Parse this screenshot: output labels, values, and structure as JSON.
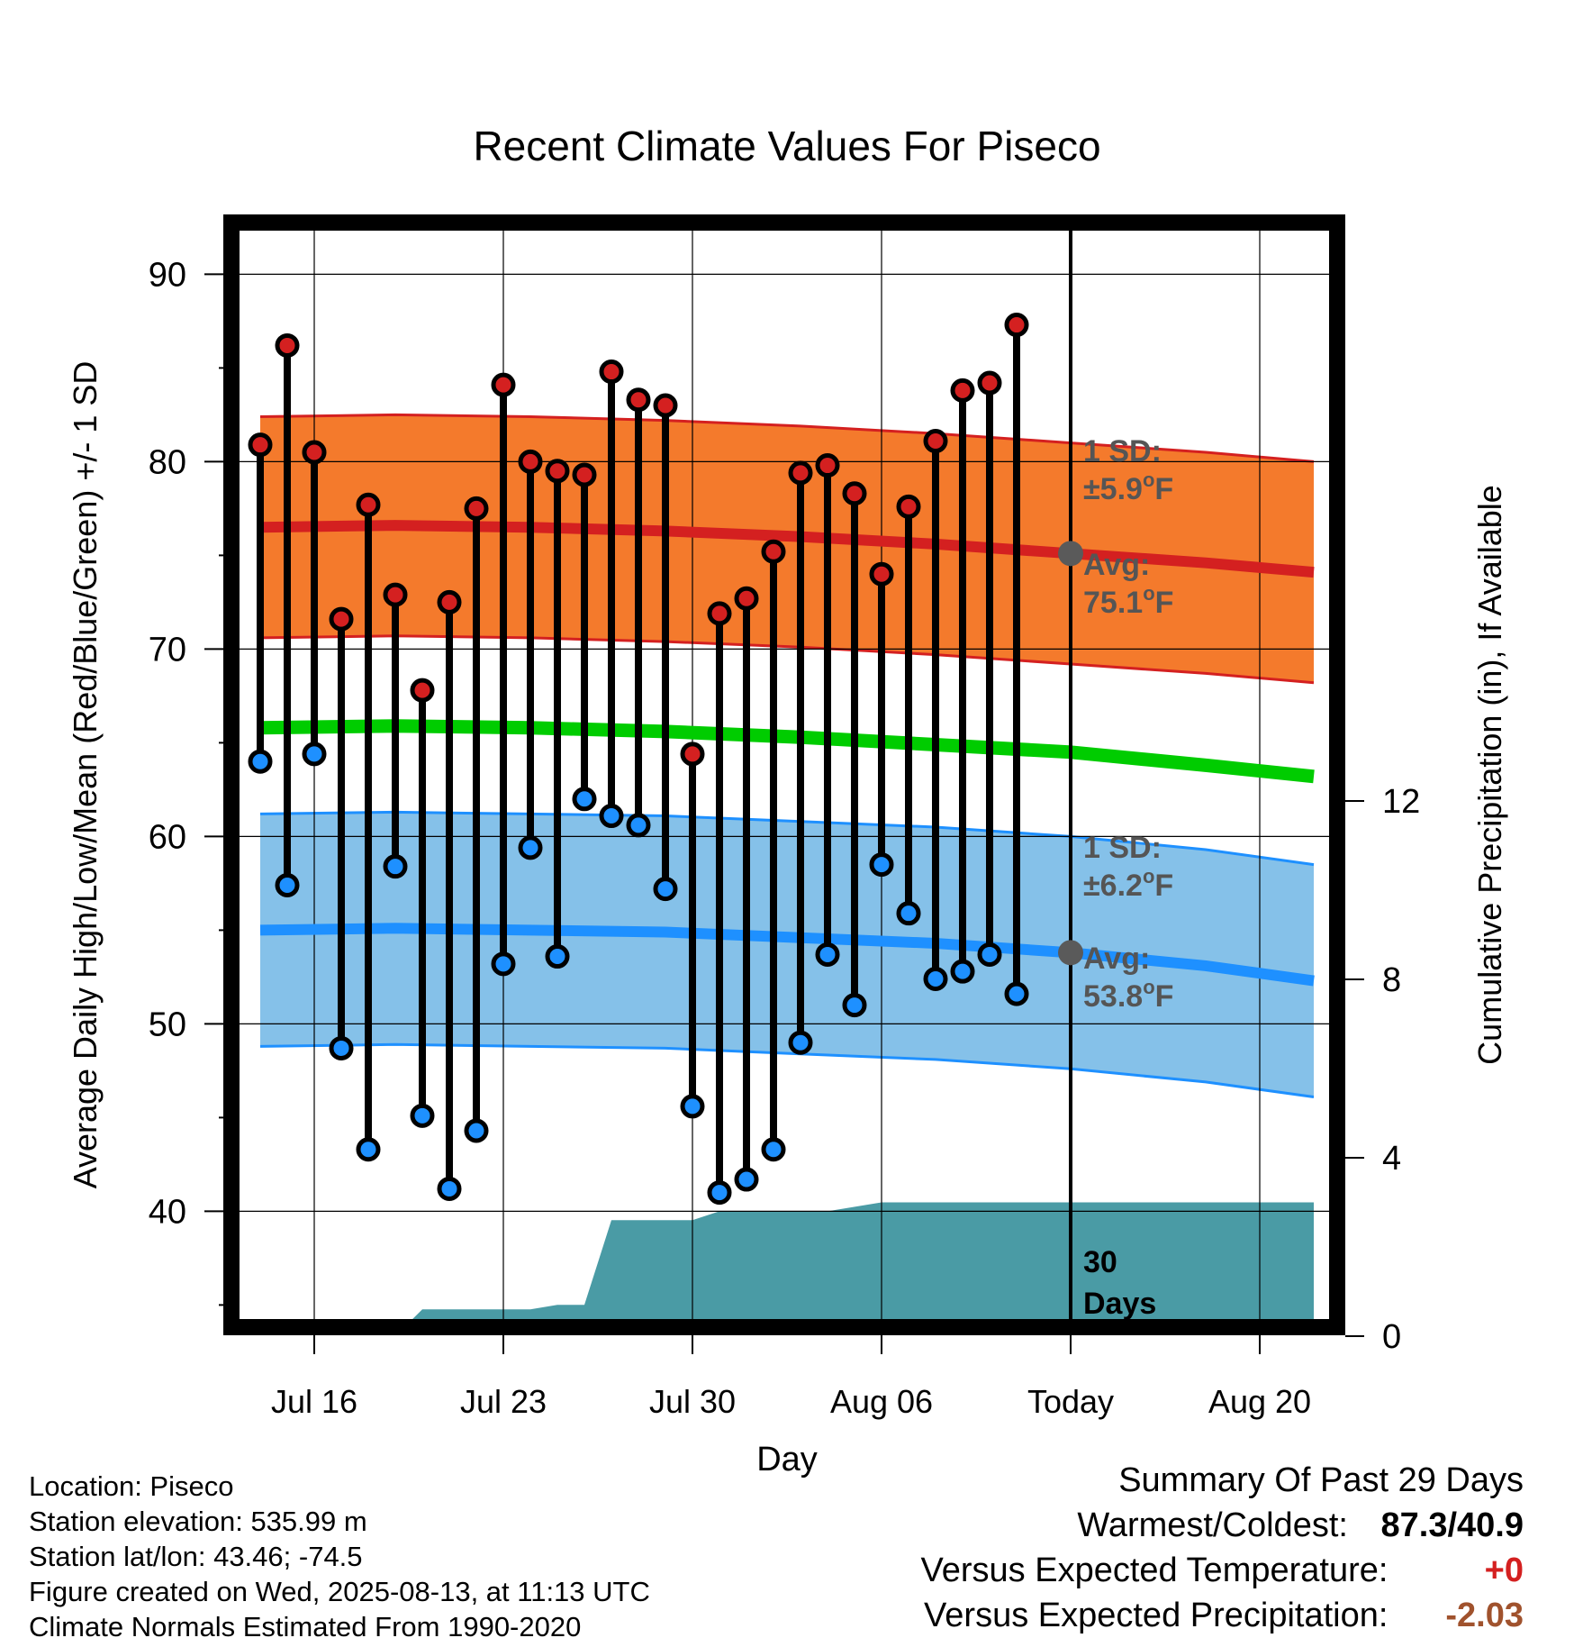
{
  "chart_data": {
    "type": "line",
    "title": "Recent Climate Values For Piseco",
    "xlabel": "Day",
    "ylabel": "Average Daily High/Low/Mean (Red/Blue/Green) +/- 1 SD",
    "y2label": "Cumulative Precipitation (in), If Available",
    "ylim": [
      33.5,
      92.5
    ],
    "y_ticks": [
      40,
      50,
      60,
      70,
      80,
      90
    ],
    "y2lim": [
      0,
      28
    ],
    "y2_ticks": [
      0,
      4,
      8,
      12
    ],
    "x_ticks": [
      "Jul 16",
      "Jul 23",
      "Jul 30",
      "Aug 06",
      "Today",
      "Aug 20"
    ],
    "x_start": "Jul 14",
    "x_end": "Aug 22",
    "today": "Aug 13",
    "days": [
      "Jul 14",
      "Jul 15",
      "Jul 16",
      "Jul 17",
      "Jul 18",
      "Jul 19",
      "Jul 20",
      "Jul 21",
      "Jul 22",
      "Jul 23",
      "Jul 24",
      "Jul 25",
      "Jul 26",
      "Jul 27",
      "Jul 28",
      "Jul 29",
      "Jul 30",
      "Jul 31",
      "Aug 01",
      "Aug 02",
      "Aug 03",
      "Aug 04",
      "Aug 05",
      "Aug 06",
      "Aug 07",
      "Aug 08",
      "Aug 09",
      "Aug 10",
      "Aug 11",
      "Aug 12"
    ],
    "series": [
      {
        "name": "Observed High",
        "color": "#d42020",
        "values": [
          80.9,
          86.2,
          80.5,
          71.6,
          77.7,
          72.9,
          67.8,
          72.5,
          77.5,
          84.1,
          80.0,
          79.5,
          79.3,
          84.8,
          83.3,
          83.0,
          64.4,
          71.9,
          72.7,
          75.2,
          79.4,
          79.8,
          78.3,
          74.0,
          77.6,
          81.1,
          83.8,
          84.2,
          87.3,
          null
        ]
      },
      {
        "name": "Observed Low",
        "color": "#1e90ff",
        "values": [
          64.0,
          57.4,
          64.4,
          48.7,
          43.3,
          58.4,
          45.1,
          41.2,
          44.3,
          53.2,
          59.4,
          53.6,
          62.0,
          61.1,
          60.6,
          57.2,
          45.6,
          41.0,
          41.7,
          43.3,
          49.0,
          53.7,
          51.0,
          58.5,
          55.9,
          52.4,
          52.8,
          53.7,
          51.6,
          null
        ]
      }
    ],
    "normal_high": {
      "x": [
        "Jul 14",
        "Jul 19",
        "Jul 24",
        "Jul 29",
        "Aug 03",
        "Aug 08",
        "Aug 13",
        "Aug 18",
        "Aug 22"
      ],
      "values": [
        76.5,
        76.6,
        76.5,
        76.3,
        76.0,
        75.6,
        75.1,
        74.6,
        74.1
      ],
      "sd": 5.9,
      "color": "#d42020",
      "band_color": "#f47a2c"
    },
    "normal_low": {
      "x": [
        "Jul 14",
        "Jul 19",
        "Jul 24",
        "Jul 29",
        "Aug 03",
        "Aug 08",
        "Aug 13",
        "Aug 18",
        "Aug 22"
      ],
      "values": [
        55.0,
        55.1,
        55.0,
        54.9,
        54.6,
        54.3,
        53.8,
        53.1,
        52.3
      ],
      "sd": 6.2,
      "color": "#1e90ff",
      "band_color": "#85c1e9"
    },
    "normal_mean": {
      "x": [
        "Jul 14",
        "Jul 19",
        "Jul 24",
        "Jul 29",
        "Aug 03",
        "Aug 08",
        "Aug 13",
        "Aug 18",
        "Aug 22"
      ],
      "values": [
        65.8,
        65.9,
        65.8,
        65.6,
        65.3,
        64.9,
        64.5,
        63.8,
        63.2
      ],
      "color": "#00cc00"
    },
    "precip": {
      "color": "#4a9ba5",
      "x": [
        "Jul 14",
        "Jul 19",
        "Jul 20",
        "Jul 24",
        "Jul 25",
        "Jul 26",
        "Jul 27",
        "Jul 30",
        "Jul 31",
        "Aug 04",
        "Aug 06",
        "Aug 22"
      ],
      "values": [
        0,
        0,
        0.6,
        0.6,
        0.7,
        0.7,
        2.6,
        2.6,
        2.8,
        2.8,
        3.0,
        3.0
      ]
    },
    "annotations": {
      "high_sd": {
        "line1": "1 SD:",
        "line2_pm": "±",
        "line2_num": "5.9",
        "line2_deg": "o",
        "line2_unit": "F"
      },
      "high_avg": {
        "line1": "Avg:",
        "line2_num": "75.1",
        "line2_deg": "o",
        "line2_unit": "F"
      },
      "low_sd": {
        "line1": "1 SD:",
        "line2_pm": "±",
        "line2_num": "6.2",
        "line2_deg": "o",
        "line2_unit": "F"
      },
      "low_avg": {
        "line1": "Avg:",
        "line2_num": "53.8",
        "line2_deg": "o",
        "line2_unit": "F"
      },
      "precip_days": {
        "line1": "30",
        "line2": "Days"
      }
    },
    "grid": true
  },
  "info": {
    "location": "Location: Piseco",
    "elevation": "Station elevation: 535.99 m",
    "latlon": "Station lat/lon: 43.46; -74.5",
    "created": "Figure created on Wed, 2025-08-13, at 11:13 UTC",
    "normals": "Climate Normals Estimated From 1990-2020"
  },
  "summary": {
    "title": "Summary Of Past 29 Days",
    "warmest_label": "Warmest/Coldest:",
    "warmest_value": "87.3/40.9",
    "temp_label": "Versus Expected Temperature:",
    "temp_value": "+0",
    "temp_color": "#d42020",
    "precip_label": "Versus Expected Precipitation:",
    "precip_value": "-2.03",
    "precip_color": "#a0522d"
  }
}
